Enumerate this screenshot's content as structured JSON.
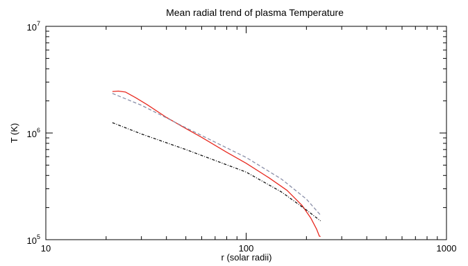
{
  "chart_data": {
    "type": "line",
    "title": "Mean radial trend of plasma Temperature",
    "xlabel": "r (solar radii)",
    "ylabel": "T (K)",
    "x_scale": "log",
    "y_scale": "log",
    "xlim": [
      10,
      1000
    ],
    "ylim": [
      100000,
      10000000
    ],
    "x_ticks": [
      {
        "value": 10,
        "label": "10"
      },
      {
        "value": 100,
        "label": "100"
      },
      {
        "value": 1000,
        "label": "1000"
      }
    ],
    "y_ticks": [
      {
        "value": 100000,
        "base": "10",
        "exp": "5"
      },
      {
        "value": 1000000,
        "base": "10",
        "exp": "6"
      },
      {
        "value": 10000000,
        "base": "10",
        "exp": "7"
      }
    ],
    "grid": false,
    "legend": "none",
    "series": [
      {
        "style": "solid",
        "color": "#e8281e",
        "points": [
          [
            21.5,
            2450000
          ],
          [
            23,
            2470000
          ],
          [
            25,
            2420000
          ],
          [
            28,
            2150000
          ],
          [
            32,
            1850000
          ],
          [
            40,
            1400000
          ],
          [
            50,
            1100000
          ],
          [
            60,
            910000
          ],
          [
            80,
            660000
          ],
          [
            100,
            520000
          ],
          [
            130,
            380000
          ],
          [
            160,
            290000
          ],
          [
            190,
            210000
          ],
          [
            210,
            160000
          ],
          [
            225,
            125000
          ],
          [
            232,
            108000
          ],
          [
            235,
            107000
          ]
        ]
      },
      {
        "style": "dashed",
        "color": "#8a8fa8",
        "points": [
          [
            21.5,
            2350000
          ],
          [
            30,
            1820000
          ],
          [
            50,
            1120000
          ],
          [
            100,
            590000
          ],
          [
            150,
            370000
          ],
          [
            200,
            240000
          ],
          [
            235,
            170000
          ]
        ]
      },
      {
        "style": "dash-dot",
        "color": "#111111",
        "points": [
          [
            21.5,
            1250000
          ],
          [
            30,
            980000
          ],
          [
            50,
            700000
          ],
          [
            100,
            430000
          ],
          [
            150,
            280000
          ],
          [
            200,
            190000
          ],
          [
            235,
            150000
          ]
        ]
      }
    ]
  }
}
